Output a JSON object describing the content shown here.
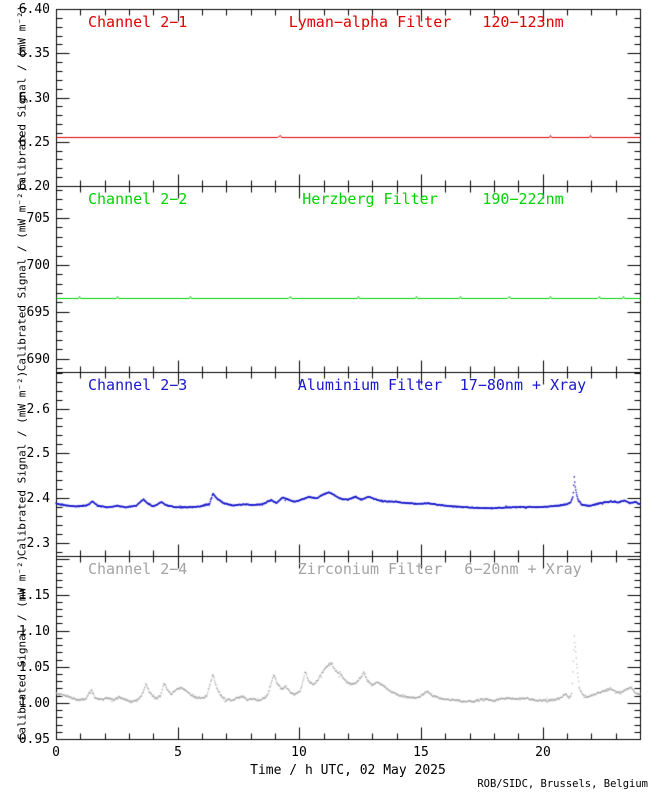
{
  "page": {
    "background": "#ffffff",
    "frame_color": "#000000"
  },
  "x_axis": {
    "title": "Time / h UTC, 02 May 2025",
    "lim": [
      0,
      24
    ],
    "minor_step": 1,
    "major_ticks": [
      {
        "value": 0,
        "label": "0"
      },
      {
        "value": 5,
        "label": "5"
      },
      {
        "value": 10,
        "label": "10"
      },
      {
        "value": 15,
        "label": "15"
      },
      {
        "value": 20,
        "label": "20"
      }
    ]
  },
  "credit": "ROB/SIDC, Brussels, Belgium",
  "chart_data": [
    {
      "type": "line",
      "channel": "Channel 2−1",
      "filter": "Lyman−alpha Filter",
      "band": "120−123nm",
      "color": "#e00000",
      "ylabel": "Calibrated Signal / (mW m⁻²)",
      "ylim": [
        6.2,
        6.4
      ],
      "ytick_values": [
        6.4,
        6.35,
        6.3,
        6.25,
        6.2
      ],
      "ytick_labels": [
        "6.40",
        "6.35",
        "6.30",
        "6.25",
        "6.20"
      ],
      "y_minor_step": 0.01,
      "style": "line",
      "noise": 0,
      "points": [
        [
          0,
          6.2555
        ],
        [
          9.1,
          6.2555
        ],
        [
          9.2,
          6.2575
        ],
        [
          9.25,
          6.2555
        ],
        [
          20.25,
          6.2555
        ],
        [
          20.3,
          6.2575
        ],
        [
          20.35,
          6.2555
        ],
        [
          21.9,
          6.2555
        ],
        [
          21.95,
          6.2575
        ],
        [
          22.0,
          6.2555
        ],
        [
          24,
          6.2555
        ]
      ]
    },
    {
      "type": "line",
      "channel": "Channel 2−2",
      "filter": "Herzberg Filter",
      "band": "190−222nm",
      "color": "#00d400",
      "ylabel": "Calibrated Signal / (mW m⁻²)",
      "ylim": [
        688.6,
        708.4
      ],
      "ytick_values": [
        705,
        700,
        695,
        690
      ],
      "ytick_labels": [
        "705",
        "700",
        "695",
        "690"
      ],
      "y_minor_step": 1,
      "style": "line",
      "noise": 0,
      "points": [
        [
          0,
          696.5
        ],
        [
          0.9,
          696.5
        ],
        [
          0.95,
          696.66
        ],
        [
          1.0,
          696.5
        ],
        [
          2.45,
          696.5
        ],
        [
          2.5,
          696.66
        ],
        [
          2.55,
          696.5
        ],
        [
          5.45,
          696.5
        ],
        [
          5.5,
          696.66
        ],
        [
          5.55,
          696.5
        ],
        [
          9.55,
          696.5
        ],
        [
          9.6,
          696.66
        ],
        [
          9.65,
          696.5
        ],
        [
          12.35,
          696.5
        ],
        [
          12.4,
          696.66
        ],
        [
          12.45,
          696.5
        ],
        [
          14.75,
          696.5
        ],
        [
          14.8,
          696.66
        ],
        [
          14.85,
          696.5
        ],
        [
          16.55,
          696.5
        ],
        [
          16.6,
          696.66
        ],
        [
          16.65,
          696.5
        ],
        [
          18.55,
          696.5
        ],
        [
          18.6,
          696.66
        ],
        [
          18.65,
          696.5
        ],
        [
          20.25,
          696.5
        ],
        [
          20.3,
          696.66
        ],
        [
          20.35,
          696.5
        ],
        [
          22.25,
          696.5
        ],
        [
          22.3,
          696.66
        ],
        [
          22.35,
          696.5
        ],
        [
          23.25,
          696.5
        ],
        [
          23.3,
          696.66
        ],
        [
          23.35,
          696.5
        ],
        [
          24,
          696.5
        ]
      ]
    },
    {
      "type": "scatter",
      "channel": "Channel 2−3",
      "filter": "Aluminium Filter",
      "band": "17−80nm + Xray",
      "color": "#1818cc",
      "ylabel": "Calibrated Signal / (mW m⁻²)",
      "ylim": [
        2.27,
        2.682
      ],
      "ytick_values": [
        2.6,
        2.5,
        2.4,
        2.3
      ],
      "ytick_labels": [
        "2.6",
        "2.5",
        "2.4",
        "2.3"
      ],
      "y_minor_step": 0.02,
      "style": "dots",
      "noise": 0.0012,
      "dot": 1.4,
      "points": [
        [
          0,
          2.388
        ],
        [
          0.4,
          2.383
        ],
        [
          0.9,
          2.381
        ],
        [
          1.3,
          2.384
        ],
        [
          1.5,
          2.392
        ],
        [
          1.7,
          2.383
        ],
        [
          2.1,
          2.379
        ],
        [
          2.5,
          2.382
        ],
        [
          2.9,
          2.379
        ],
        [
          3.3,
          2.383
        ],
        [
          3.6,
          2.397
        ],
        [
          3.75,
          2.388
        ],
        [
          4.0,
          2.381
        ],
        [
          4.35,
          2.391
        ],
        [
          4.5,
          2.384
        ],
        [
          4.9,
          2.379
        ],
        [
          5.4,
          2.379
        ],
        [
          5.9,
          2.381
        ],
        [
          6.3,
          2.386
        ],
        [
          6.45,
          2.41
        ],
        [
          6.6,
          2.399
        ],
        [
          6.9,
          2.388
        ],
        [
          7.3,
          2.383
        ],
        [
          7.7,
          2.386
        ],
        [
          8.1,
          2.384
        ],
        [
          8.5,
          2.386
        ],
        [
          8.85,
          2.396
        ],
        [
          9.05,
          2.388
        ],
        [
          9.3,
          2.401
        ],
        [
          9.5,
          2.397
        ],
        [
          9.8,
          2.391
        ],
        [
          10.1,
          2.397
        ],
        [
          10.4,
          2.402
        ],
        [
          10.7,
          2.399
        ],
        [
          11.0,
          2.408
        ],
        [
          11.2,
          2.413
        ],
        [
          11.45,
          2.406
        ],
        [
          11.7,
          2.398
        ],
        [
          12.0,
          2.396
        ],
        [
          12.3,
          2.403
        ],
        [
          12.55,
          2.396
        ],
        [
          12.85,
          2.403
        ],
        [
          13.1,
          2.397
        ],
        [
          13.5,
          2.392
        ],
        [
          13.9,
          2.392
        ],
        [
          14.3,
          2.389
        ],
        [
          14.8,
          2.387
        ],
        [
          15.3,
          2.388
        ],
        [
          15.8,
          2.384
        ],
        [
          16.3,
          2.381
        ],
        [
          16.9,
          2.379
        ],
        [
          17.4,
          2.377
        ],
        [
          18.0,
          2.377
        ],
        [
          18.6,
          2.379
        ],
        [
          19.2,
          2.38
        ],
        [
          19.8,
          2.379
        ],
        [
          20.3,
          2.381
        ],
        [
          20.7,
          2.383
        ],
        [
          21.0,
          2.386
        ],
        [
          21.15,
          2.39
        ],
        [
          21.25,
          2.404
        ],
        [
          21.3,
          2.446
        ],
        [
          21.35,
          2.42
        ],
        [
          21.45,
          2.396
        ],
        [
          21.6,
          2.385
        ],
        [
          21.9,
          2.382
        ],
        [
          22.2,
          2.386
        ],
        [
          22.5,
          2.39
        ],
        [
          22.8,
          2.392
        ],
        [
          23.1,
          2.39
        ],
        [
          23.35,
          2.394
        ],
        [
          23.6,
          2.388
        ],
        [
          23.8,
          2.391
        ],
        [
          24,
          2.386
        ]
      ]
    },
    {
      "type": "scatter",
      "channel": "Channel 2−4",
      "filter": "Zirconium Filter",
      "band": "6−20nm + Xray",
      "color": "#a3a3a3",
      "ylabel": "Calibrated Signal / (mW m⁻²)",
      "ylim": [
        0.95,
        1.2035
      ],
      "ytick_values": [
        1.15,
        1.1,
        1.05,
        1.0,
        0.95
      ],
      "ytick_labels": [
        "1.15",
        "1.10",
        "1.05",
        "1.00",
        "0.95"
      ],
      "y_minor_step": 0.01,
      "style": "dots",
      "noise": 0.0016,
      "dot": 1.1,
      "points": [
        [
          0,
          1.013
        ],
        [
          0.3,
          1.011
        ],
        [
          0.6,
          1.008
        ],
        [
          0.9,
          1.004
        ],
        [
          1.2,
          1.005
        ],
        [
          1.45,
          1.018
        ],
        [
          1.6,
          1.007
        ],
        [
          1.9,
          1.004
        ],
        [
          2.1,
          1.008
        ],
        [
          2.35,
          1.004
        ],
        [
          2.6,
          1.008
        ],
        [
          2.85,
          1.004
        ],
        [
          3.1,
          1.002
        ],
        [
          3.35,
          1.004
        ],
        [
          3.55,
          1.012
        ],
        [
          3.7,
          1.027
        ],
        [
          3.85,
          1.014
        ],
        [
          4.1,
          1.006
        ],
        [
          4.3,
          1.01
        ],
        [
          4.45,
          1.028
        ],
        [
          4.6,
          1.017
        ],
        [
          4.75,
          1.012
        ],
        [
          4.95,
          1.019
        ],
        [
          5.15,
          1.021
        ],
        [
          5.35,
          1.017
        ],
        [
          5.55,
          1.011
        ],
        [
          5.75,
          1.007
        ],
        [
          6.0,
          1.007
        ],
        [
          6.2,
          1.01
        ],
        [
          6.45,
          1.04
        ],
        [
          6.6,
          1.021
        ],
        [
          6.8,
          1.009
        ],
        [
          7.0,
          1.004
        ],
        [
          7.25,
          1.003
        ],
        [
          7.45,
          1.007
        ],
        [
          7.65,
          1.009
        ],
        [
          7.85,
          1.004
        ],
        [
          8.1,
          1.006
        ],
        [
          8.4,
          1.003
        ],
        [
          8.7,
          1.011
        ],
        [
          8.95,
          1.04
        ],
        [
          9.1,
          1.026
        ],
        [
          9.3,
          1.019
        ],
        [
          9.45,
          1.023
        ],
        [
          9.65,
          1.014
        ],
        [
          9.85,
          1.012
        ],
        [
          10.05,
          1.017
        ],
        [
          10.25,
          1.044
        ],
        [
          10.4,
          1.029
        ],
        [
          10.55,
          1.025
        ],
        [
          10.75,
          1.031
        ],
        [
          10.95,
          1.043
        ],
        [
          11.15,
          1.051
        ],
        [
          11.3,
          1.055
        ],
        [
          11.5,
          1.044
        ],
        [
          11.7,
          1.039
        ],
        [
          11.9,
          1.031
        ],
        [
          12.1,
          1.026
        ],
        [
          12.3,
          1.027
        ],
        [
          12.5,
          1.034
        ],
        [
          12.65,
          1.042
        ],
        [
          12.8,
          1.031
        ],
        [
          13.0,
          1.025
        ],
        [
          13.2,
          1.029
        ],
        [
          13.45,
          1.024
        ],
        [
          13.7,
          1.017
        ],
        [
          14.0,
          1.012
        ],
        [
          14.3,
          1.009
        ],
        [
          14.65,
          1.007
        ],
        [
          14.95,
          1.008
        ],
        [
          15.25,
          1.016
        ],
        [
          15.45,
          1.01
        ],
        [
          15.75,
          1.007
        ],
        [
          16.05,
          1.005
        ],
        [
          16.4,
          1.004
        ],
        [
          16.75,
          1.002
        ],
        [
          17.1,
          1.002
        ],
        [
          17.4,
          1.004
        ],
        [
          17.7,
          1.005
        ],
        [
          18.0,
          1.003
        ],
        [
          18.3,
          1.006
        ],
        [
          18.6,
          1.007
        ],
        [
          18.9,
          1.005
        ],
        [
          19.2,
          1.007
        ],
        [
          19.5,
          1.005
        ],
        [
          19.8,
          1.003
        ],
        [
          20.1,
          1.003
        ],
        [
          20.4,
          1.004
        ],
        [
          20.7,
          1.006
        ],
        [
          20.95,
          1.012
        ],
        [
          21.1,
          1.006
        ],
        [
          21.2,
          1.012
        ],
        [
          21.25,
          1.05
        ],
        [
          21.3,
          1.092
        ],
        [
          21.4,
          1.055
        ],
        [
          21.5,
          1.022
        ],
        [
          21.65,
          1.01
        ],
        [
          21.85,
          1.008
        ],
        [
          22.05,
          1.011
        ],
        [
          22.3,
          1.014
        ],
        [
          22.55,
          1.017
        ],
        [
          22.8,
          1.02
        ],
        [
          23.0,
          1.015
        ],
        [
          23.2,
          1.014
        ],
        [
          23.45,
          1.019
        ],
        [
          23.65,
          1.022
        ],
        [
          23.8,
          1.014
        ],
        [
          24,
          1.011
        ]
      ]
    }
  ]
}
